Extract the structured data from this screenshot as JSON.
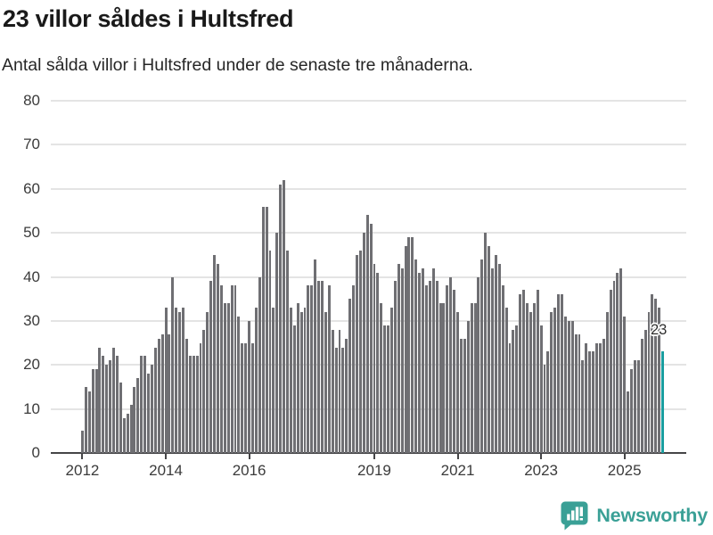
{
  "header": {
    "title": "23 villor såldes i Hultsfred",
    "subtitle": "Antal sålda villor i Hultsfred under de senaste tre månaderna."
  },
  "chart_data": {
    "type": "bar",
    "title": "23 villor såldes i Hultsfred",
    "xlabel": "",
    "ylabel": "",
    "grid": true,
    "legend_position": "none",
    "ylim": [
      0,
      80
    ],
    "yticks": [
      0,
      10,
      20,
      30,
      40,
      50,
      60,
      70,
      80
    ],
    "x_tick_labels": [
      "2012",
      "2014",
      "2016",
      "2019",
      "2021",
      "2023",
      "2025"
    ],
    "x_tick_indices": [
      0,
      24,
      48,
      84,
      108,
      132,
      156
    ],
    "values": [
      5,
      15,
      14,
      19,
      19,
      24,
      22,
      20,
      21,
      24,
      22,
      16,
      8,
      9,
      11,
      15,
      17,
      22,
      22,
      18,
      20,
      24,
      26,
      27,
      33,
      27,
      40,
      33,
      32,
      33,
      26,
      22,
      22,
      22,
      25,
      28,
      32,
      39,
      45,
      43,
      38,
      34,
      34,
      38,
      38,
      31,
      25,
      25,
      30,
      25,
      33,
      40,
      56,
      56,
      46,
      33,
      50,
      61,
      62,
      46,
      33,
      29,
      34,
      32,
      33,
      38,
      38,
      44,
      39,
      39,
      32,
      38,
      28,
      24,
      28,
      24,
      26,
      35,
      38,
      45,
      46,
      50,
      54,
      52,
      43,
      41,
      34,
      29,
      29,
      33,
      39,
      43,
      42,
      47,
      49,
      49,
      44,
      41,
      42,
      38,
      39,
      42,
      39,
      34,
      34,
      38,
      40,
      37,
      32,
      26,
      26,
      30,
      34,
      34,
      40,
      44,
      50,
      47,
      42,
      45,
      43,
      38,
      33,
      25,
      28,
      29,
      36,
      37,
      34,
      32,
      34,
      37,
      29,
      20,
      23,
      32,
      33,
      36,
      36,
      31,
      30,
      30,
      27,
      27,
      21,
      25,
      23,
      23,
      25,
      25,
      26,
      32,
      37,
      39,
      41,
      42,
      31,
      14,
      19,
      21,
      21,
      26,
      28,
      32,
      36,
      35,
      33,
      23
    ],
    "highlight_index": 167,
    "highlight_value": 23,
    "bar_color": "#6f6f73",
    "highlight_color": "#1a9ea0"
  },
  "annotation": {
    "label": "23"
  },
  "footer": {
    "brand": "Newsworthy",
    "brand_color": "#3aa096"
  }
}
